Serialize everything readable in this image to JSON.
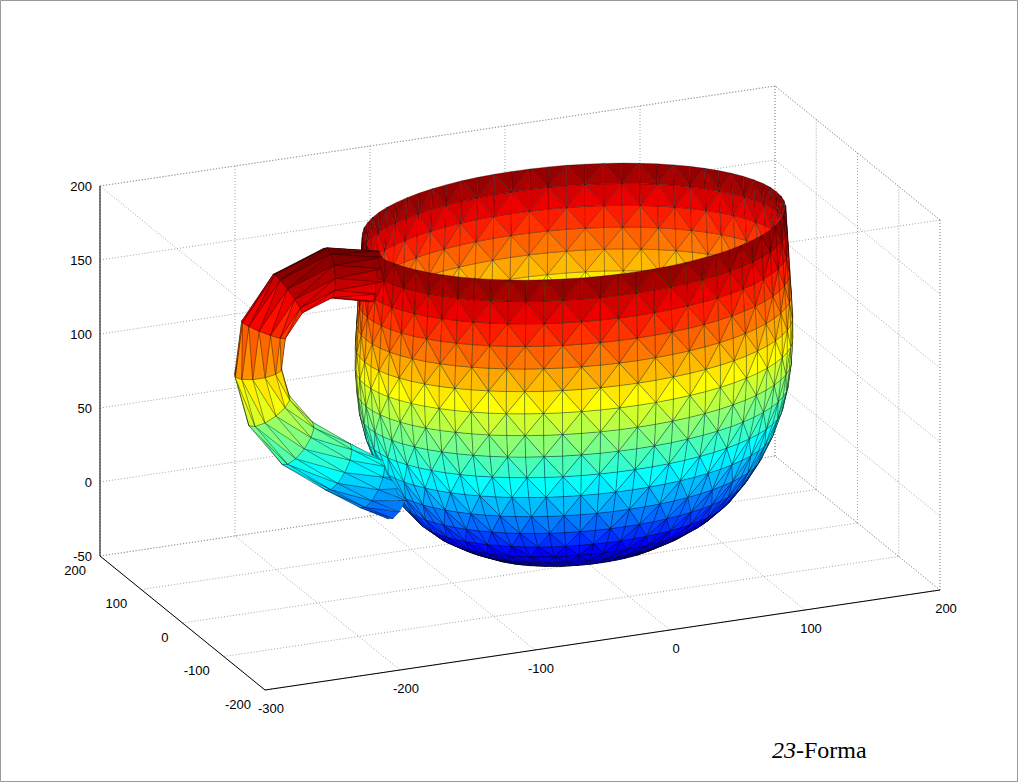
{
  "chart_data": {
    "type": "mesh",
    "annotation": "23-Forma",
    "xlim": [
      -300,
      200
    ],
    "xticks": [
      -300,
      -200,
      -100,
      0,
      100,
      200
    ],
    "ylim": [
      -200,
      200
    ],
    "yticks": [
      -200,
      -100,
      0,
      100,
      200
    ],
    "zlim": [
      -50,
      200
    ],
    "zticks": [
      -50,
      0,
      50,
      100,
      150,
      200
    ],
    "grid": true,
    "center": [
      -10,
      0
    ],
    "profile": {
      "z": [
        -42,
        -41,
        -38,
        -33,
        -26,
        -18,
        -8,
        4,
        18,
        33,
        48,
        63,
        78,
        93,
        108,
        123,
        138,
        153,
        168,
        182
      ],
      "r": [
        0,
        25,
        48,
        68,
        85,
        100,
        113,
        124,
        134,
        142,
        148,
        152,
        154,
        155,
        155,
        154,
        153,
        152,
        151,
        150
      ]
    },
    "handle": {
      "x": [
        -158,
        -192,
        -222,
        -240,
        -244,
        -236,
        -215,
        -185,
        -160,
        -140
      ],
      "y": [
        0,
        0,
        0,
        0,
        0,
        0,
        0,
        0,
        0,
        0
      ],
      "z": [
        165,
        172,
        162,
        140,
        112,
        85,
        60,
        40,
        25,
        15
      ],
      "radius": 17
    }
  }
}
